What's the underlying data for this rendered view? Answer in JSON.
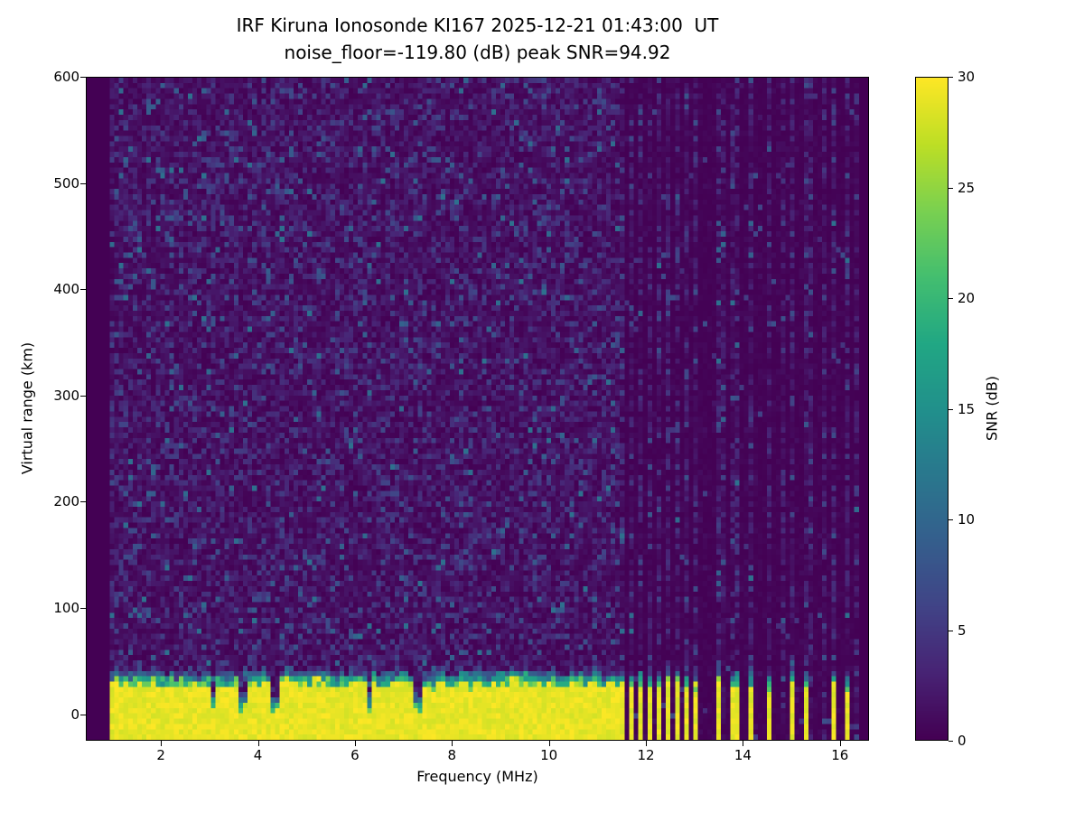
{
  "figure": {
    "title_line1": "IRF Kiruna Ionosonde KI167 2025-12-21 01:43:00  UT",
    "title_line2": "noise_floor=-119.80 (dB) peak SNR=94.92"
  },
  "chart_data": {
    "type": "heatmap",
    "title": "IRF Kiruna Ionosonde KI167 2025-12-21 01:43:00  UT",
    "subtitle": "noise_floor=-119.80 (dB) peak SNR=94.92",
    "station": "IRF Kiruna Ionosonde KI167",
    "timestamp_ut": "2025-12-21 01:43:00",
    "noise_floor_db": -119.8,
    "peak_snr_db": 94.92,
    "xlabel": "Frequency (MHz)",
    "ylabel": "Virtual range (km)",
    "xlim": [
      0.45,
      16.6
    ],
    "ylim": [
      -25,
      600
    ],
    "xticks": [
      2,
      4,
      6,
      8,
      10,
      12,
      14,
      16
    ],
    "yticks": [
      0,
      100,
      200,
      300,
      400,
      500,
      600
    ],
    "grid": false,
    "colorbar": {
      "label": "SNR (dB)",
      "min": 0,
      "max": 30,
      "ticks": [
        0,
        5,
        10,
        15,
        20,
        25,
        30
      ],
      "colormap": "viridis",
      "position": "right"
    },
    "viridis_stops": [
      "#440154",
      "#482475",
      "#414487",
      "#355f8d",
      "#2a788e",
      "#21918c",
      "#22a884",
      "#44bf70",
      "#7ad151",
      "#bddf26",
      "#fde725"
    ],
    "features": {
      "background": "low-level speckle noise 0-8 dB over whole frequency/range plane",
      "ground_echo": "saturated ~30 dB band from bottom of plot up to ~30-40 km virtual range across 1-11.6 MHz, teal/green transition fringe on top",
      "echo_notches": "narrow dark notches in the ground-echo band near 3.0, 3.7, 4.3, 6.3 and 7.3 MHz",
      "comb_region": "11.6-13.1 MHz: ground echo broken into regular alternating vertical yellow stripes",
      "sparse_stripes": "isolated yellow stripes near 13.5, 13.9, 14.2, 14.6, 15.0, 15.4, 15.9, 16.2 MHz with quiet dark columns between",
      "quiet_columns": "above 11.6 MHz background noise is suppressed except in stripe columns"
    },
    "render": {
      "grid_nx": 170,
      "grid_ny": 125,
      "data_freq_min": 0.95,
      "data_freq_max": 16.45,
      "echo_top_km": 33,
      "noise_scale_db": 2.0,
      "comb_start": 11.55,
      "comb_end": 13.15,
      "notch_freqs": [
        3.05,
        3.7,
        4.35,
        6.3,
        7.3
      ],
      "stripe_freqs": [
        13.5,
        13.85,
        14.2,
        14.55,
        15.0,
        15.35,
        15.9,
        16.2
      ]
    }
  }
}
